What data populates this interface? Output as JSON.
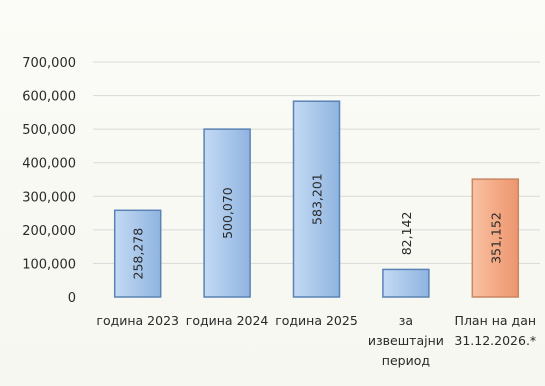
{
  "chart_data": {
    "type": "bar",
    "title": "",
    "xlabel": "",
    "ylabel": "",
    "ylim": [
      0,
      700000
    ],
    "yticks": [
      0,
      100000,
      200000,
      300000,
      400000,
      500000,
      600000,
      700000
    ],
    "ytick_labels": [
      "0",
      "100,000",
      "200,000",
      "300,000",
      "400,000",
      "500,000",
      "600,000",
      "700,000"
    ],
    "grid": true,
    "categories": [
      [
        "година 2023"
      ],
      [
        "година 2024"
      ],
      [
        "година 2025"
      ],
      [
        "за",
        "извештајни",
        "период"
      ],
      [
        "План на дан",
        "31.12.2026.*"
      ]
    ],
    "values": [
      258278,
      500070,
      583201,
      82142,
      351152
    ],
    "value_labels": [
      "258,278",
      "500,070",
      "583,201",
      "82,142",
      "351,152"
    ],
    "colors": [
      "#a9c7ea",
      "#a9c7ea",
      "#a9c7ea",
      "#a9c7ea",
      "#f4aa86"
    ],
    "edge_colors": [
      "#5a82b4",
      "#5a82b4",
      "#5a82b4",
      "#5a82b4",
      "#c98662"
    ]
  }
}
